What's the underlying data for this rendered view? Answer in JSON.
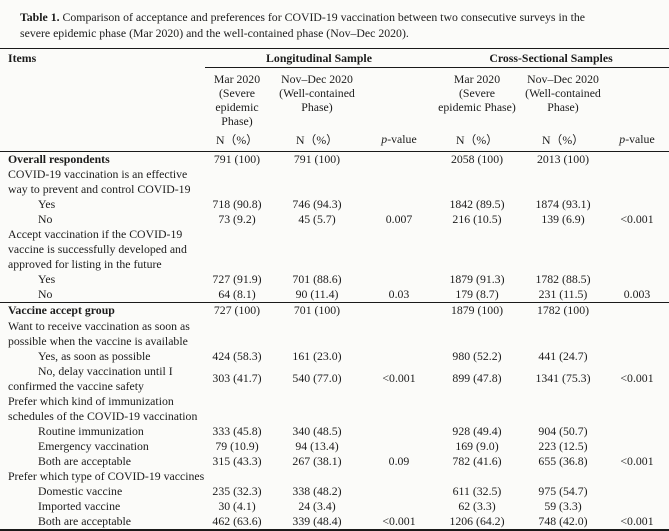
{
  "caption": {
    "label": "Table 1.",
    "text": " Comparison of acceptance and preferences for COVID-19 vaccination between two consecutive surveys in the\nsevere epidemic phase (Mar 2020) and the well-contained phase (Nov–Dec 2020)."
  },
  "table": {
    "header": {
      "items": "Items",
      "longitudinal": "Longitudinal Sample",
      "cross_sectional": "Cross-Sectional Samples",
      "col_mar_long": "Mar 2020\n(Severe\nepidemic\nPhase)",
      "col_nov_long": "Nov–Dec 2020\n(Well-contained\nPhase)",
      "col_mar_cs": "Mar 2020\n(Severe\nepidemic Phase)",
      "col_nov_cs": "Nov–Dec 2020\n(Well-contained\nPhase)",
      "n_pct": "N（%）",
      "p_italic": "p",
      "p_rest": "-value"
    },
    "rows": [
      {
        "label": "Overall respondents",
        "bold": true,
        "cells": [
          "791 (100)",
          "791 (100)",
          "",
          "2058 (100)",
          "2013 (100)",
          ""
        ]
      },
      {
        "label": "COVID-19 vaccination is an effective\nway to prevent and control COVID-19",
        "cells": [
          "",
          "",
          "",
          "",
          "",
          ""
        ]
      },
      {
        "label": "Yes",
        "indent": true,
        "cells": [
          "718 (90.8)",
          "746 (94.3)",
          "",
          "1842 (89.5)",
          "1874 (93.1)",
          ""
        ]
      },
      {
        "label": "No",
        "indent": true,
        "cells": [
          "73 (9.2)",
          "45 (5.7)",
          "0.007",
          "216 (10.5)",
          "139 (6.9)",
          "<0.001"
        ]
      },
      {
        "label": "Accept vaccination if the COVID-19\nvaccine is successfully developed and\napproved for listing in the future",
        "cells": [
          "",
          "",
          "",
          "",
          "",
          ""
        ]
      },
      {
        "label": "Yes",
        "indent": true,
        "cells": [
          "727 (91.9)",
          "701 (88.6)",
          "",
          "1879 (91.3)",
          "1782 (88.5)",
          ""
        ]
      },
      {
        "label": "No",
        "indent": true,
        "rule_below": true,
        "cells": [
          "64 (8.1)",
          "90 (11.4)",
          "0.03",
          "179 (8.7)",
          "231 (11.5)",
          "0.003"
        ]
      },
      {
        "label": "Vaccine accept group",
        "bold": true,
        "cells": [
          "727 (100)",
          "701 (100)",
          "",
          "1879 (100)",
          "1782 (100)",
          ""
        ]
      },
      {
        "label": "Want to receive vaccination as soon as\npossible when the vaccine is available",
        "cells": [
          "",
          "",
          "",
          "",
          "",
          ""
        ]
      },
      {
        "label": "Yes, as soon as possible",
        "indent": true,
        "cells": [
          "424 (58.3)",
          "161 (23.0)",
          "",
          "980 (52.2)",
          "441 (24.7)",
          ""
        ]
      },
      {
        "label": "No, delay vaccination until I\nconfirmed the vaccine safety",
        "indent": true,
        "cells": [
          "303 (41.7)",
          "540 (77.0)",
          "<0.001",
          "899 (47.8)",
          "1341 (75.3)",
          "<0.001"
        ]
      },
      {
        "label": "Prefer which kind of immunization\nschedules of the COVID-19 vaccination",
        "cells": [
          "",
          "",
          "",
          "",
          "",
          ""
        ]
      },
      {
        "label": "Routine immunization",
        "indent": true,
        "cells": [
          "333 (45.8)",
          "340 (48.5)",
          "",
          "928 (49.4)",
          "904 (50.7)",
          ""
        ]
      },
      {
        "label": "Emergency vaccination",
        "indent": true,
        "cells": [
          "79 (10.9)",
          "94 (13.4)",
          "",
          "169 (9.0)",
          "223 (12.5)",
          ""
        ]
      },
      {
        "label": "Both are acceptable",
        "indent": true,
        "cells": [
          "315 (43.3)",
          "267 (38.1)",
          "0.09",
          "782 (41.6)",
          "655 (36.8)",
          "<0.001"
        ]
      },
      {
        "label": "Prefer which type of COVID-19 vaccines",
        "cells": [
          "",
          "",
          "",
          "",
          "",
          ""
        ]
      },
      {
        "label": "Domestic vaccine",
        "indent": true,
        "cells": [
          "235 (32.3)",
          "338 (48.2)",
          "",
          "611 (32.5)",
          "975 (54.7)",
          ""
        ]
      },
      {
        "label": "Imported vaccine",
        "indent": true,
        "cells": [
          "30 (4.1)",
          "24 (3.4)",
          "",
          "62 (3.3)",
          "59 (3.3)",
          ""
        ]
      },
      {
        "label": "Both are acceptable",
        "indent": true,
        "cells": [
          "462 (63.6)",
          "339 (48.4)",
          "<0.001",
          "1206 (64.2)",
          "748 (42.0)",
          "<0.001"
        ]
      }
    ]
  }
}
